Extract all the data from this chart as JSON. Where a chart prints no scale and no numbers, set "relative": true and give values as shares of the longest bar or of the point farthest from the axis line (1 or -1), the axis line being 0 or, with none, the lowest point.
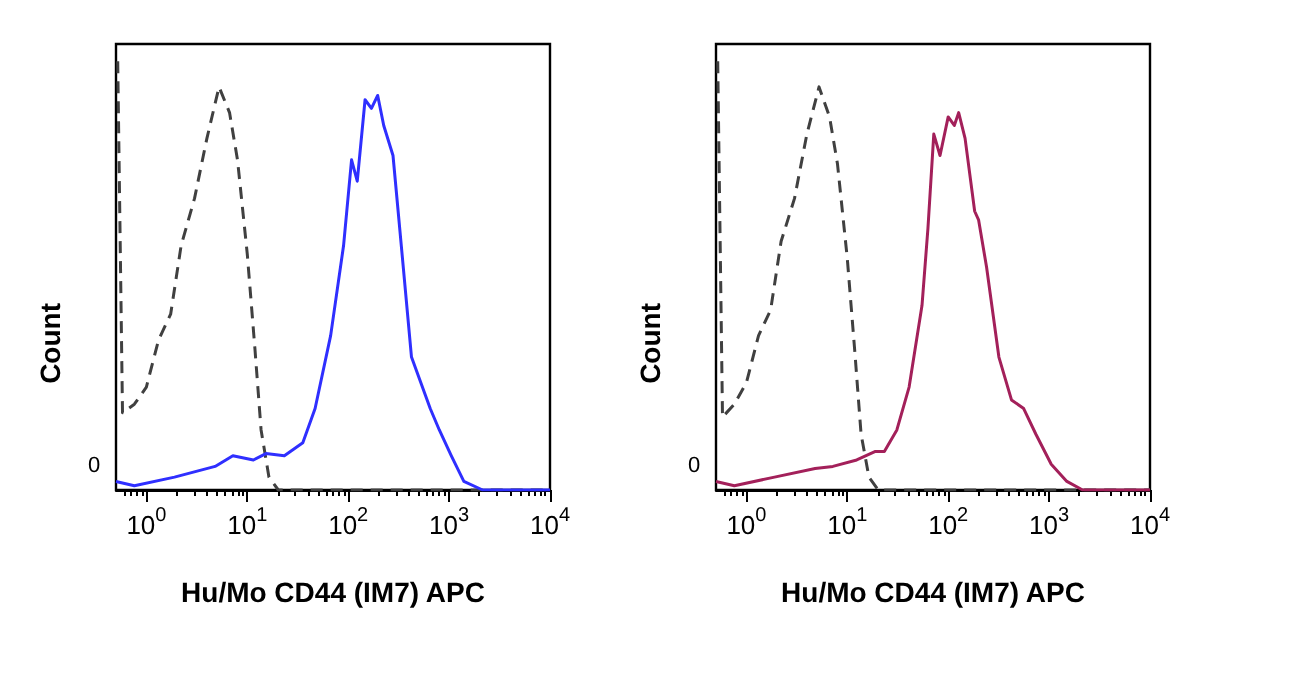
{
  "chart_data": [
    {
      "type": "line",
      "relative": true,
      "xlabel": "Hu/Mo CD44 (IM7) APC",
      "ylabel": "Count",
      "log": "x",
      "xlim": [
        0.5,
        10000
      ],
      "xticks": [
        {
          "value": 1,
          "label": "10$^{0}$"
        },
        {
          "value": 10,
          "label": "10$^{1}$"
        },
        {
          "value": 100,
          "label": "10$^{2}$"
        },
        {
          "value": 1000,
          "label": "10$^{3}$"
        },
        {
          "value": 10000,
          "label": "10$^{4}$"
        }
      ],
      "grid": false,
      "marker": "none",
      "annotations": [
        "0"
      ],
      "series": [
        {
          "color": "#404040",
          "line_style": "dashed",
          "x": [
            0.52,
            0.58,
            0.76,
            1.0,
            1.32,
            1.74,
            2.21,
            3.0,
            3.98,
            5.25,
            6.67,
            8.0,
            10,
            11.9,
            13.7,
            16.4,
            20.3,
            10000
          ],
          "values": [
            1.0,
            0.18,
            0.2,
            0.24,
            0.35,
            0.41,
            0.57,
            0.68,
            0.82,
            0.94,
            0.88,
            0.77,
            0.55,
            0.33,
            0.14,
            0.03,
            0,
            0
          ]
        },
        {
          "color": "#2f2fff",
          "line_style": "solid",
          "x": [
            0.5,
            0.76,
            1.9,
            4.8,
            7.2,
            11.5,
            15.3,
            23.3,
            35.5,
            47,
            67,
            90,
            108,
            123,
            147,
            170,
            196,
            225,
            278,
            342,
            424,
            525,
            650,
            800,
            1050,
            1400,
            2150,
            10000
          ],
          "values": [
            0.02,
            0.01,
            0.03,
            0.055,
            0.08,
            0.07,
            0.085,
            0.08,
            0.11,
            0.19,
            0.36,
            0.57,
            0.77,
            0.72,
            0.91,
            0.89,
            0.92,
            0.85,
            0.78,
            0.55,
            0.31,
            0.25,
            0.19,
            0.14,
            0.08,
            0.02,
            0,
            0
          ]
        }
      ]
    },
    {
      "type": "line",
      "relative": true,
      "xlabel": "Hu/Mo CD44 (IM7) APC",
      "ylabel": "Count",
      "log": "x",
      "xlim": [
        0.5,
        10000
      ],
      "xticks": [
        {
          "value": 1,
          "label": "10$^{0}$"
        },
        {
          "value": 10,
          "label": "10$^{1}$"
        },
        {
          "value": 100,
          "label": "10$^{2}$"
        },
        {
          "value": 1000,
          "label": "10$^{3}$"
        },
        {
          "value": 10000,
          "label": "10$^{4}$"
        }
      ],
      "grid": false,
      "marker": "none",
      "annotations": [
        "0"
      ],
      "series": [
        {
          "color": "#404040",
          "line_style": "dashed",
          "x": [
            0.52,
            0.58,
            0.76,
            1.0,
            1.32,
            1.74,
            2.21,
            3.0,
            3.98,
            5.25,
            6.67,
            8.0,
            10,
            11.9,
            13.7,
            16.4,
            20.3,
            10000
          ],
          "values": [
            1.0,
            0.17,
            0.2,
            0.25,
            0.36,
            0.42,
            0.58,
            0.68,
            0.83,
            0.94,
            0.87,
            0.76,
            0.54,
            0.32,
            0.13,
            0.03,
            0,
            0
          ]
        },
        {
          "color": "#a3205a",
          "line_style": "solid",
          "x": [
            0.5,
            0.76,
            1.9,
            4.8,
            7.2,
            12.4,
            19,
            23.3,
            31,
            41,
            55,
            63,
            72,
            83,
            100,
            115,
            127,
            147,
            183,
            200,
            240,
            318,
            424,
            560,
            740,
            1050,
            1500,
            2150,
            10000
          ],
          "values": [
            0.02,
            0.01,
            0.03,
            0.05,
            0.055,
            0.07,
            0.09,
            0.09,
            0.14,
            0.24,
            0.43,
            0.61,
            0.83,
            0.78,
            0.87,
            0.85,
            0.88,
            0.82,
            0.65,
            0.63,
            0.52,
            0.31,
            0.21,
            0.19,
            0.13,
            0.06,
            0.02,
            0,
            0
          ]
        }
      ]
    }
  ]
}
